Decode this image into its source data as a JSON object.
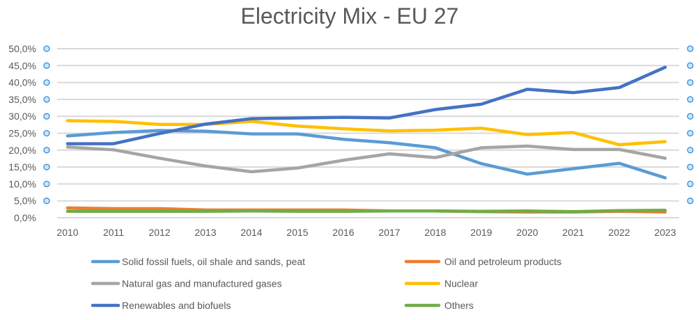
{
  "chart_data": {
    "type": "line",
    "title": "Electricity Mix - EU 27",
    "xlabel": "",
    "ylabel": "",
    "ylim": [
      0,
      50
    ],
    "y_ticks": [
      "0,0%",
      "5,0%",
      "10,0%",
      "15,0%",
      "20,0%",
      "25,0%",
      "30,0%",
      "35,0%",
      "40,0%",
      "45,0%",
      "50,0%"
    ],
    "grid": true,
    "legend_placement": "bottom",
    "x": [
      "2010",
      "2011",
      "2012",
      "2013",
      "2014",
      "2015",
      "2016",
      "2017",
      "2018",
      "2019",
      "2020",
      "2021",
      "2022",
      "2023"
    ],
    "series": [
      {
        "name": "Solid fossil fuels, oil shale and sands, peat",
        "color": "#5B9BD5",
        "values": [
          24.2,
          25.2,
          25.8,
          25.6,
          24.8,
          24.8,
          23.2,
          22.2,
          20.7,
          16.0,
          12.9,
          14.5,
          16.1,
          11.8
        ]
      },
      {
        "name": "Oil and petroleum products",
        "color": "#ED7D31",
        "values": [
          2.9,
          2.7,
          2.7,
          2.3,
          2.3,
          2.3,
          2.3,
          2.0,
          2.0,
          1.8,
          1.7,
          1.7,
          1.9,
          1.7
        ]
      },
      {
        "name": "Natural gas and manufactured gases",
        "color": "#A5A5A5",
        "values": [
          20.9,
          20.1,
          17.6,
          15.3,
          13.6,
          14.7,
          17.0,
          18.9,
          17.8,
          20.7,
          21.2,
          20.2,
          20.2,
          17.6
        ]
      },
      {
        "name": "Nuclear",
        "color": "#FFC000",
        "values": [
          28.7,
          28.5,
          27.6,
          27.6,
          28.5,
          27.1,
          26.3,
          25.7,
          25.9,
          26.5,
          24.6,
          25.2,
          21.6,
          22.5
        ]
      },
      {
        "name": "Renewables and biofuels",
        "color": "#4472C4",
        "values": [
          21.9,
          21.9,
          24.9,
          27.7,
          29.3,
          29.5,
          29.7,
          29.5,
          32.0,
          33.6,
          38.0,
          37.0,
          38.5,
          44.5
        ]
      },
      {
        "name": "Others",
        "color": "#70AD47",
        "values": [
          1.9,
          1.9,
          1.9,
          1.9,
          2.0,
          1.9,
          1.9,
          2.0,
          2.0,
          1.9,
          2.0,
          1.8,
          2.1,
          2.2
        ]
      }
    ]
  }
}
